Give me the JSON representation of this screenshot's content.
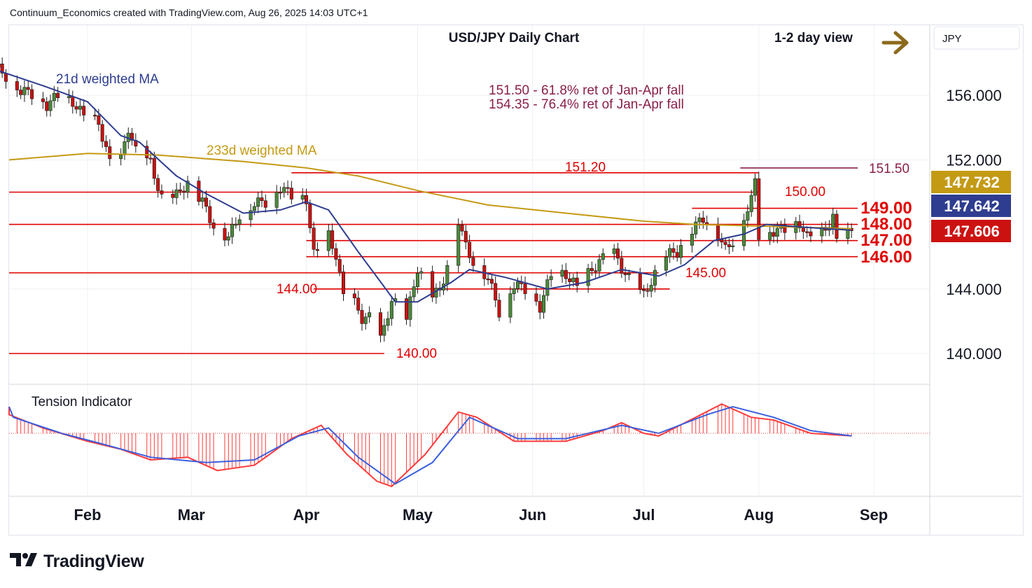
{
  "header": {
    "attribution": "Continuum_Economics created with TradingView.com, Aug 26, 2025 14:03 UTC+1"
  },
  "footer": {
    "brand": "TradingView"
  },
  "colors": {
    "up_candle": "#4b8a3a",
    "down_candle": "#cc1111",
    "ma21": "#2e3d8f",
    "ma233": "#c49a15",
    "level": "#e00000",
    "annot": "#8a1f4a",
    "arrow": "#8b6a1c",
    "tension_red": "#ff3b3b",
    "tension_blue": "#3a5fe0"
  },
  "chart_data": {
    "type": "candlestick",
    "title": "USD/JPY Daily Chart",
    "view_label": "1-2 day view",
    "view_arrow_icon": "arrow-right-icon",
    "currency": "JPY",
    "y_ticks": [
      156,
      152,
      144,
      140
    ],
    "y_tick_labels": [
      "156.000",
      "152.000",
      "144.000",
      "140.000"
    ],
    "price_tags": [
      {
        "label": "147.732",
        "value": 147.732,
        "color": "#c49a15"
      },
      {
        "label": "147.642",
        "value": 147.642,
        "color": "#2e3d8f"
      },
      {
        "label": "147.606",
        "value": 147.606,
        "color": "#cc1111"
      }
    ],
    "x_ticks": [
      {
        "label": "Feb",
        "date": "2025-02-01"
      },
      {
        "label": "Mar",
        "date": "2025-03-01"
      },
      {
        "label": "Apr",
        "date": "2025-04-01"
      },
      {
        "label": "May",
        "date": "2025-05-01"
      },
      {
        "label": "Jun",
        "date": "2025-06-01"
      },
      {
        "label": "Jul",
        "date": "2025-07-01"
      },
      {
        "label": "Aug",
        "date": "2025-08-01"
      },
      {
        "label": "Sep",
        "date": "2025-09-01"
      }
    ],
    "series_labels": {
      "ma21": "21d weighted MA",
      "ma233": "233d weighted MA"
    },
    "annotations": [
      "151.50 - 61.8% ret of Jan-Apr fall",
      "154.35 - 76.4% ret of Jan-Apr fall"
    ],
    "levels": [
      {
        "value": 151.2,
        "label": "151.20",
        "from": "2025-03-28",
        "to": "2025-08-01"
      },
      {
        "value": 151.5,
        "label": "151.50",
        "from": "2025-07-27",
        "to": "2025-08-31",
        "color": "#8a1f4a"
      },
      {
        "value": 150.0,
        "label": "150.00",
        "from": "2025-01-01",
        "to": "2025-08-01"
      },
      {
        "value": 149.0,
        "label": "149.00",
        "from": "2025-07-14",
        "to": "2025-08-31"
      },
      {
        "value": 148.0,
        "label": "148.00",
        "from": "2025-01-01",
        "to": "2025-08-31"
      },
      {
        "value": 147.0,
        "label": "147.00",
        "from": "2025-04-01",
        "to": "2025-08-31"
      },
      {
        "value": 146.0,
        "label": "146.00",
        "from": "2025-04-01",
        "to": "2025-08-31"
      },
      {
        "value": 145.0,
        "label": "145.00",
        "from": "2025-01-01",
        "to": "2025-07-05"
      },
      {
        "value": 144.0,
        "label": "144.00",
        "from": "2025-04-03",
        "to": "2025-07-08"
      },
      {
        "value": 140.0,
        "label": "140.00",
        "from": "2025-01-01",
        "to": "2025-04-22"
      }
    ],
    "close_path": [
      [
        "2025-01-07",
        157.8
      ],
      [
        "2025-01-10",
        157.2
      ],
      [
        "2025-01-14",
        156.3
      ],
      [
        "2025-01-17",
        156.1
      ],
      [
        "2025-01-21",
        155.4
      ],
      [
        "2025-01-24",
        156.0
      ],
      [
        "2025-01-28",
        155.6
      ],
      [
        "2025-01-31",
        154.7
      ],
      [
        "2025-02-04",
        154.3
      ],
      [
        "2025-02-07",
        151.8
      ],
      [
        "2025-02-10",
        152.0
      ],
      [
        "2025-02-12",
        154.0
      ],
      [
        "2025-02-14",
        152.5
      ],
      [
        "2025-02-18",
        151.8
      ],
      [
        "2025-02-21",
        149.6
      ],
      [
        "2025-02-25",
        149.8
      ],
      [
        "2025-02-28",
        150.6
      ],
      [
        "2025-03-04",
        149.4
      ],
      [
        "2025-03-07",
        147.9
      ],
      [
        "2025-03-11",
        147.2
      ],
      [
        "2025-03-14",
        148.6
      ],
      [
        "2025-03-18",
        149.3
      ],
      [
        "2025-03-21",
        149.4
      ],
      [
        "2025-03-25",
        150.3
      ],
      [
        "2025-03-28",
        149.8
      ],
      [
        "2025-04-01",
        149.6
      ],
      [
        "2025-04-03",
        146.1
      ],
      [
        "2025-04-07",
        147.3
      ],
      [
        "2025-04-09",
        146.1
      ],
      [
        "2025-04-11",
        143.5
      ],
      [
        "2025-04-14",
        143.1
      ],
      [
        "2025-04-16",
        142.2
      ],
      [
        "2025-04-18",
        142.2
      ],
      [
        "2025-04-21",
        140.9
      ],
      [
        "2025-04-22",
        141.5
      ],
      [
        "2025-04-24",
        143.4
      ],
      [
        "2025-04-28",
        142.1
      ],
      [
        "2025-05-01",
        145.3
      ],
      [
        "2025-05-05",
        143.7
      ],
      [
        "2025-05-07",
        143.8
      ],
      [
        "2025-05-09",
        145.5
      ],
      [
        "2025-05-12",
        148.3
      ],
      [
        "2025-05-14",
        146.6
      ],
      [
        "2025-05-16",
        145.7
      ],
      [
        "2025-05-20",
        144.7
      ],
      [
        "2025-05-23",
        142.6
      ],
      [
        "2025-05-27",
        144.3
      ],
      [
        "2025-05-30",
        144.0
      ],
      [
        "2025-06-03",
        142.9
      ],
      [
        "2025-06-06",
        144.9
      ],
      [
        "2025-06-10",
        144.9
      ],
      [
        "2025-06-13",
        144.1
      ],
      [
        "2025-06-17",
        145.2
      ],
      [
        "2025-06-20",
        145.9
      ],
      [
        "2025-06-23",
        146.2
      ],
      [
        "2025-06-25",
        145.3
      ],
      [
        "2025-06-27",
        144.6
      ],
      [
        "2025-07-01",
        143.6
      ],
      [
        "2025-07-03",
        144.5
      ],
      [
        "2025-07-07",
        146.1
      ],
      [
        "2025-07-10",
        146.3
      ],
      [
        "2025-07-14",
        147.7
      ],
      [
        "2025-07-17",
        148.4
      ],
      [
        "2025-07-21",
        147.4
      ],
      [
        "2025-07-23",
        146.4
      ],
      [
        "2025-07-25",
        147.0
      ],
      [
        "2025-07-28",
        148.5
      ],
      [
        "2025-07-30",
        149.5
      ],
      [
        "2025-07-31",
        150.7
      ],
      [
        "2025-08-01",
        147.4
      ],
      [
        "2025-08-05",
        147.6
      ],
      [
        "2025-08-08",
        147.7
      ],
      [
        "2025-08-12",
        148.1
      ],
      [
        "2025-08-14",
        147.2
      ],
      [
        "2025-08-18",
        147.5
      ],
      [
        "2025-08-21",
        148.4
      ],
      [
        "2025-08-22",
        146.9
      ],
      [
        "2025-08-26",
        147.606
      ]
    ],
    "ma21_path": [
      [
        "2025-01-07",
        157.6
      ],
      [
        "2025-01-20",
        156.6
      ],
      [
        "2025-02-01",
        155.6
      ],
      [
        "2025-02-10",
        153.5
      ],
      [
        "2025-02-15",
        153.1
      ],
      [
        "2025-02-25",
        151.0
      ],
      [
        "2025-03-05",
        149.9
      ],
      [
        "2025-03-15",
        148.7
      ],
      [
        "2025-03-25",
        148.9
      ],
      [
        "2025-04-01",
        149.4
      ],
      [
        "2025-04-07",
        148.9
      ],
      [
        "2025-04-15",
        146.3
      ],
      [
        "2025-04-25",
        143.2
      ],
      [
        "2025-05-01",
        143.2
      ],
      [
        "2025-05-10",
        144.4
      ],
      [
        "2025-05-15",
        145.2
      ],
      [
        "2025-05-25",
        144.7
      ],
      [
        "2025-06-05",
        144.0
      ],
      [
        "2025-06-15",
        144.4
      ],
      [
        "2025-06-25",
        145.2
      ],
      [
        "2025-07-05",
        144.8
      ],
      [
        "2025-07-12",
        145.5
      ],
      [
        "2025-07-20",
        147.0
      ],
      [
        "2025-07-28",
        147.4
      ],
      [
        "2025-08-03",
        148.0
      ],
      [
        "2025-08-15",
        147.8
      ],
      [
        "2025-08-26",
        147.642
      ]
    ],
    "ma233_path": [
      [
        "2025-01-01",
        152.0
      ],
      [
        "2025-02-01",
        152.4
      ],
      [
        "2025-02-20",
        152.3
      ],
      [
        "2025-03-15",
        151.9
      ],
      [
        "2025-04-01",
        151.5
      ],
      [
        "2025-04-15",
        151.0
      ],
      [
        "2025-05-01",
        150.1
      ],
      [
        "2025-05-20",
        149.2
      ],
      [
        "2025-06-10",
        148.7
      ],
      [
        "2025-07-01",
        148.2
      ],
      [
        "2025-07-15",
        148.0
      ],
      [
        "2025-08-01",
        147.9
      ],
      [
        "2025-08-26",
        147.732
      ]
    ],
    "tension_indicator": {
      "label": "Tension Indicator",
      "fast": [
        [
          "2025-01-01",
          1.0
        ],
        [
          "2025-01-10",
          0.7
        ],
        [
          "2025-01-20",
          0.2
        ],
        [
          "2025-02-01",
          -0.3
        ],
        [
          "2025-02-10",
          -0.6
        ],
        [
          "2025-02-18",
          -1.0
        ],
        [
          "2025-02-28",
          -0.9
        ],
        [
          "2025-03-08",
          -1.4
        ],
        [
          "2025-03-18",
          -1.2
        ],
        [
          "2025-03-28",
          -0.2
        ],
        [
          "2025-04-05",
          0.3
        ],
        [
          "2025-04-12",
          -0.8
        ],
        [
          "2025-04-20",
          -1.8
        ],
        [
          "2025-04-24",
          -2.0
        ],
        [
          "2025-05-03",
          -0.8
        ],
        [
          "2025-05-12",
          0.8
        ],
        [
          "2025-05-17",
          0.6
        ],
        [
          "2025-05-27",
          -0.3
        ],
        [
          "2025-06-10",
          -0.3
        ],
        [
          "2025-06-20",
          0.1
        ],
        [
          "2025-06-25",
          0.4
        ],
        [
          "2025-07-01",
          0.0
        ],
        [
          "2025-07-05",
          -0.1
        ],
        [
          "2025-07-15",
          0.6
        ],
        [
          "2025-07-22",
          1.1
        ],
        [
          "2025-07-30",
          0.6
        ],
        [
          "2025-08-05",
          0.5
        ],
        [
          "2025-08-15",
          0.0
        ],
        [
          "2025-08-26",
          -0.1
        ]
      ],
      "slow": [
        [
          "2025-01-01",
          1.0
        ],
        [
          "2025-01-12",
          0.6
        ],
        [
          "2025-01-25",
          0.0
        ],
        [
          "2025-02-05",
          -0.4
        ],
        [
          "2025-02-18",
          -0.9
        ],
        [
          "2025-03-05",
          -1.1
        ],
        [
          "2025-03-18",
          -1.0
        ],
        [
          "2025-03-30",
          -0.1
        ],
        [
          "2025-04-07",
          0.2
        ],
        [
          "2025-04-15",
          -0.9
        ],
        [
          "2025-04-25",
          -1.9
        ],
        [
          "2025-05-05",
          -1.1
        ],
        [
          "2025-05-15",
          0.6
        ],
        [
          "2025-05-28",
          -0.2
        ],
        [
          "2025-06-10",
          -0.2
        ],
        [
          "2025-06-25",
          0.3
        ],
        [
          "2025-07-05",
          0.0
        ],
        [
          "2025-07-18",
          0.7
        ],
        [
          "2025-07-25",
          1.0
        ],
        [
          "2025-08-05",
          0.6
        ],
        [
          "2025-08-15",
          0.1
        ],
        [
          "2025-08-26",
          -0.1
        ]
      ]
    }
  }
}
